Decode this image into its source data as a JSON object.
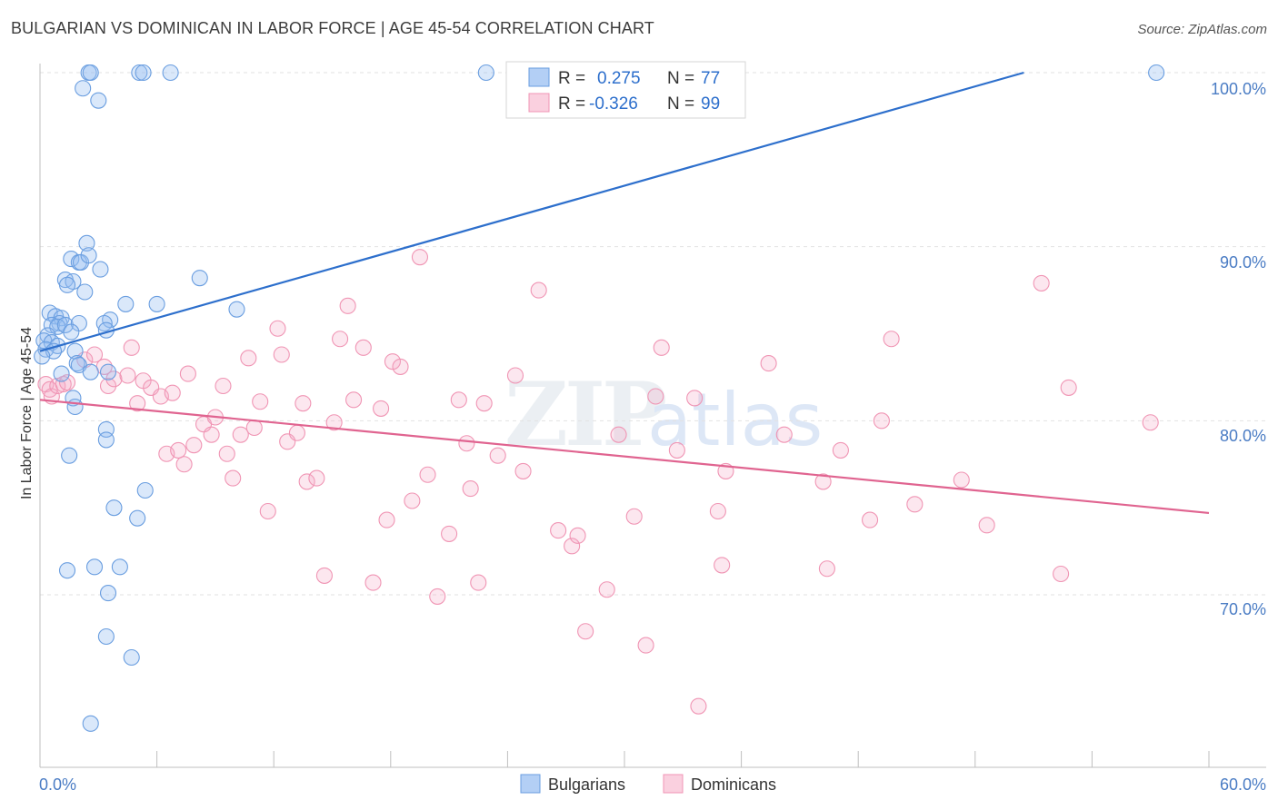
{
  "title": "BULGARIAN VS DOMINICAN IN LABOR FORCE | AGE 45-54 CORRELATION CHART",
  "source": "Source: ZipAtlas.com",
  "watermark": {
    "zip": "ZIP",
    "atlas": "atlas"
  },
  "legend": {
    "r_label": "R =",
    "n_label": "N =",
    "series": [
      {
        "r": "0.275",
        "n": "77"
      },
      {
        "r": "-0.326",
        "n": "99"
      }
    ]
  },
  "chart_data": {
    "type": "scatter",
    "title": "BULGARIAN VS DOMINICAN IN LABOR FORCE | AGE 45-54 CORRELATION CHART",
    "xlabel": "",
    "ylabel": "In Labor Force | Age 45-54",
    "xlim": [
      0,
      60
    ],
    "ylim": [
      60.5,
      101.5
    ],
    "x_tick_labels": [
      "0.0%",
      "60.0%"
    ],
    "y_ticks": [
      70,
      80,
      90,
      100
    ],
    "y_tick_labels": [
      "70.0%",
      "80.0%",
      "90.0%",
      "100.0%"
    ],
    "grid": true,
    "legend_position": "top-center",
    "series": [
      {
        "name": "Bulgarians",
        "color": "#6a9ee0",
        "line_color": "#2d6fcc",
        "trend": [
          [
            0,
            84.0
          ],
          [
            50.5,
            100.0
          ]
        ],
        "points": [
          [
            2.5,
            100
          ],
          [
            2.6,
            100
          ],
          [
            5.1,
            100
          ],
          [
            5.3,
            100
          ],
          [
            6.7,
            100
          ],
          [
            22.9,
            100
          ],
          [
            57.3,
            100
          ],
          [
            2.2,
            99.1
          ],
          [
            3.0,
            98.4
          ],
          [
            2.4,
            90.2
          ],
          [
            1.6,
            89.3
          ],
          [
            2.0,
            89.1
          ],
          [
            2.1,
            89.1
          ],
          [
            2.5,
            89.5
          ],
          [
            3.1,
            88.7
          ],
          [
            1.3,
            88.1
          ],
          [
            1.7,
            88.0
          ],
          [
            8.2,
            88.2
          ],
          [
            1.4,
            87.8
          ],
          [
            2.3,
            87.4
          ],
          [
            4.4,
            86.7
          ],
          [
            6.0,
            86.7
          ],
          [
            10.1,
            86.4
          ],
          [
            0.5,
            86.2
          ],
          [
            0.8,
            86.0
          ],
          [
            1.1,
            85.9
          ],
          [
            3.6,
            85.8
          ],
          [
            3.3,
            85.6
          ],
          [
            1.0,
            85.6
          ],
          [
            0.6,
            85.5
          ],
          [
            0.9,
            85.4
          ],
          [
            1.3,
            85.5
          ],
          [
            2.0,
            85.6
          ],
          [
            1.6,
            85.1
          ],
          [
            3.4,
            85.2
          ],
          [
            0.4,
            84.9
          ],
          [
            0.2,
            84.6
          ],
          [
            0.6,
            84.5
          ],
          [
            0.9,
            84.3
          ],
          [
            0.3,
            84.1
          ],
          [
            0.7,
            84.0
          ],
          [
            1.8,
            84.0
          ],
          [
            0.1,
            83.7
          ],
          [
            1.9,
            83.3
          ],
          [
            2.0,
            83.2
          ],
          [
            1.1,
            82.7
          ],
          [
            2.6,
            82.8
          ],
          [
            3.5,
            82.8
          ],
          [
            1.7,
            81.3
          ],
          [
            1.8,
            80.8
          ],
          [
            3.4,
            79.5
          ],
          [
            3.4,
            78.9
          ],
          [
            1.5,
            78.0
          ],
          [
            5.4,
            76.0
          ],
          [
            3.8,
            75.0
          ],
          [
            5.0,
            74.4
          ],
          [
            1.4,
            71.4
          ],
          [
            2.8,
            71.6
          ],
          [
            4.1,
            71.6
          ],
          [
            3.5,
            70.1
          ],
          [
            3.4,
            67.6
          ],
          [
            4.7,
            66.4
          ],
          [
            2.6,
            62.6
          ]
        ]
      },
      {
        "name": "Dominicans",
        "color": "#f095b4",
        "line_color": "#e06490",
        "trend": [
          [
            0,
            81.2
          ],
          [
            60,
            74.7
          ]
        ],
        "points": [
          [
            0.3,
            82.1
          ],
          [
            0.5,
            81.8
          ],
          [
            0.6,
            81.4
          ],
          [
            0.9,
            82.0
          ],
          [
            1.2,
            82.1
          ],
          [
            1.4,
            82.2
          ],
          [
            2.3,
            83.5
          ],
          [
            2.8,
            83.8
          ],
          [
            3.3,
            83.1
          ],
          [
            3.5,
            82.0
          ],
          [
            3.8,
            82.4
          ],
          [
            4.5,
            82.6
          ],
          [
            4.7,
            84.2
          ],
          [
            5.0,
            81.0
          ],
          [
            5.3,
            82.3
          ],
          [
            5.7,
            81.9
          ],
          [
            6.2,
            81.4
          ],
          [
            6.5,
            78.1
          ],
          [
            6.8,
            81.6
          ],
          [
            7.1,
            78.3
          ],
          [
            7.4,
            77.5
          ],
          [
            7.6,
            82.7
          ],
          [
            7.9,
            78.6
          ],
          [
            8.4,
            79.8
          ],
          [
            8.8,
            79.2
          ],
          [
            9.0,
            80.2
          ],
          [
            9.4,
            82.0
          ],
          [
            9.6,
            78.1
          ],
          [
            9.9,
            76.7
          ],
          [
            10.3,
            79.2
          ],
          [
            10.7,
            83.6
          ],
          [
            11.0,
            79.6
          ],
          [
            11.3,
            81.1
          ],
          [
            11.7,
            74.8
          ],
          [
            12.2,
            85.3
          ],
          [
            12.4,
            83.8
          ],
          [
            12.7,
            78.8
          ],
          [
            13.2,
            79.3
          ],
          [
            13.5,
            81.0
          ],
          [
            13.7,
            76.5
          ],
          [
            14.2,
            76.7
          ],
          [
            14.6,
            71.1
          ],
          [
            15.1,
            79.9
          ],
          [
            15.4,
            84.7
          ],
          [
            15.8,
            86.6
          ],
          [
            16.1,
            81.2
          ],
          [
            16.6,
            84.2
          ],
          [
            17.1,
            70.7
          ],
          [
            17.5,
            80.7
          ],
          [
            17.8,
            74.3
          ],
          [
            18.1,
            83.4
          ],
          [
            18.5,
            83.1
          ],
          [
            19.1,
            75.4
          ],
          [
            19.5,
            89.4
          ],
          [
            19.9,
            76.9
          ],
          [
            20.4,
            69.9
          ],
          [
            21.0,
            73.5
          ],
          [
            21.5,
            81.2
          ],
          [
            21.9,
            78.7
          ],
          [
            22.1,
            76.1
          ],
          [
            22.5,
            70.7
          ],
          [
            22.8,
            81.0
          ],
          [
            23.5,
            78.0
          ],
          [
            24.4,
            82.6
          ],
          [
            24.8,
            77.1
          ],
          [
            25.6,
            87.5
          ],
          [
            26.6,
            73.7
          ],
          [
            27.3,
            72.8
          ],
          [
            27.6,
            73.4
          ],
          [
            28.0,
            67.9
          ],
          [
            29.1,
            70.3
          ],
          [
            29.7,
            79.2
          ],
          [
            30.5,
            74.5
          ],
          [
            31.1,
            67.1
          ],
          [
            31.6,
            81.4
          ],
          [
            31.9,
            84.2
          ],
          [
            32.7,
            78.3
          ],
          [
            33.6,
            81.3
          ],
          [
            33.8,
            63.6
          ],
          [
            34.8,
            74.8
          ],
          [
            35.0,
            71.7
          ],
          [
            35.2,
            77.1
          ],
          [
            37.4,
            83.3
          ],
          [
            38.2,
            79.2
          ],
          [
            40.2,
            76.5
          ],
          [
            40.4,
            71.5
          ],
          [
            41.1,
            78.3
          ],
          [
            42.6,
            74.3
          ],
          [
            43.2,
            80.0
          ],
          [
            43.7,
            84.7
          ],
          [
            44.9,
            75.2
          ],
          [
            47.3,
            76.6
          ],
          [
            48.6,
            74.0
          ],
          [
            51.4,
            87.9
          ],
          [
            52.4,
            71.2
          ],
          [
            52.8,
            81.9
          ],
          [
            57.0,
            79.9
          ]
        ]
      }
    ]
  }
}
